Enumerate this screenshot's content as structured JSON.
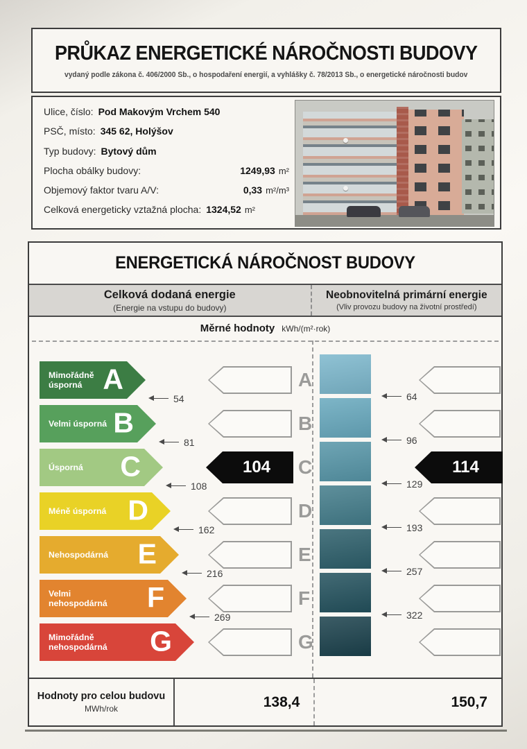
{
  "document": {
    "title": "PRŮKAZ ENERGETICKÉ NÁROČNOSTI BUDOVY",
    "subtitle": "vydaný podle zákona č. 406/2000 Sb., o hospodaření energií, a vyhlášky č. 78/2013 Sb., o energetické náročnosti budov"
  },
  "building_info": {
    "rows": [
      {
        "label": "Ulice, číslo:",
        "value": "Pod Makovým Vrchem 540",
        "unit": ""
      },
      {
        "label": "PSČ, místo:",
        "value": "345 62, Holýšov",
        "unit": ""
      },
      {
        "label": "Typ budovy:",
        "value": "Bytový dům",
        "unit": ""
      },
      {
        "label": "Plocha obálky budovy:",
        "value": "1249,93",
        "unit": "m²"
      },
      {
        "label": "Objemový faktor tvaru A/V:",
        "value": "0,33",
        "unit": "m²/m³"
      },
      {
        "label": "Celková energeticky vztažná plocha:",
        "value": "1324,52",
        "unit": "m²"
      }
    ]
  },
  "section": {
    "title": "ENERGETICKÁ NÁROČNOST BUDOVY",
    "left_header": "Celková dodaná energie",
    "left_subheader": "(Energie na vstupu do budovy)",
    "right_header": "Neobnovitelná primární energie",
    "right_subheader": "(Vliv provozu budovy na životní prostředí)",
    "units_label": "Měrné hodnoty",
    "units": "kWh/(m²·rok)"
  },
  "scale": {
    "classes": [
      {
        "letter": "A",
        "label": "Mimořádně úsporná",
        "color": "#3c7d44",
        "band_color": "#7db8cd",
        "threshold_delivered": "54",
        "threshold_primary": "64"
      },
      {
        "letter": "B",
        "label": "Velmi úsporná",
        "color": "#57a05c",
        "band_color": "#68a9be",
        "threshold_delivered": "81",
        "threshold_primary": "96"
      },
      {
        "letter": "C",
        "label": "Úsporná",
        "color": "#a2c983",
        "band_color": "#5796a8",
        "threshold_delivered": "108",
        "threshold_primary": "129"
      },
      {
        "letter": "D",
        "label": "Méně úsporná",
        "color": "#e9d226",
        "band_color": "#447d8b",
        "threshold_delivered": "162",
        "threshold_primary": "193"
      },
      {
        "letter": "E",
        "label": "Nehospodárná",
        "color": "#e5ab2e",
        "band_color": "#2d5f6b",
        "threshold_delivered": "216",
        "threshold_primary": "257"
      },
      {
        "letter": "F",
        "label": "Velmi nehospodárná",
        "color": "#e2842f",
        "band_color": "#24525e",
        "threshold_delivered": "269",
        "threshold_primary": "322"
      },
      {
        "letter": "G",
        "label": "Mimořádně nehospodárná",
        "color": "#d8453a",
        "band_color": "#1c424d",
        "threshold_delivered": "",
        "threshold_primary": ""
      }
    ]
  },
  "ratings": {
    "delivered": {
      "value": "104",
      "class": "C"
    },
    "primary": {
      "value": "114",
      "class": "C"
    }
  },
  "totals": {
    "label": "Hodnoty pro celou budovu",
    "unit": "MWh/rok",
    "delivered": "138,4",
    "primary": "150,7"
  },
  "chart_data": {
    "type": "rating-scale",
    "title": "ENERGETICKÁ NÁROČNOST BUDOVY",
    "classes": [
      "A",
      "B",
      "C",
      "D",
      "E",
      "F",
      "G"
    ],
    "class_labels": [
      "Mimořádně úsporná",
      "Velmi úsporná",
      "Úsporná",
      "Méně úsporná",
      "Nehospodárná",
      "Velmi nehospodárná",
      "Mimořádně nehospodárná"
    ],
    "columns": [
      {
        "name": "Celková dodaná energie (Energie na vstupu do budovy)",
        "unit": "kWh/(m²·rok)",
        "class_upper_bounds": [
          54,
          81,
          108,
          162,
          216,
          269
        ],
        "measured_value": 104,
        "measured_class": "C",
        "whole_building_value": "138,4",
        "whole_building_unit": "MWh/rok"
      },
      {
        "name": "Neobnovitelná primární energie (Vliv provozu budovy na životní prostředí)",
        "unit": "kWh/(m²·rok)",
        "class_upper_bounds": [
          64,
          96,
          129,
          193,
          257,
          322
        ],
        "measured_value": 114,
        "measured_class": "C",
        "whole_building_value": "150,7",
        "whole_building_unit": "MWh/rok"
      }
    ]
  }
}
